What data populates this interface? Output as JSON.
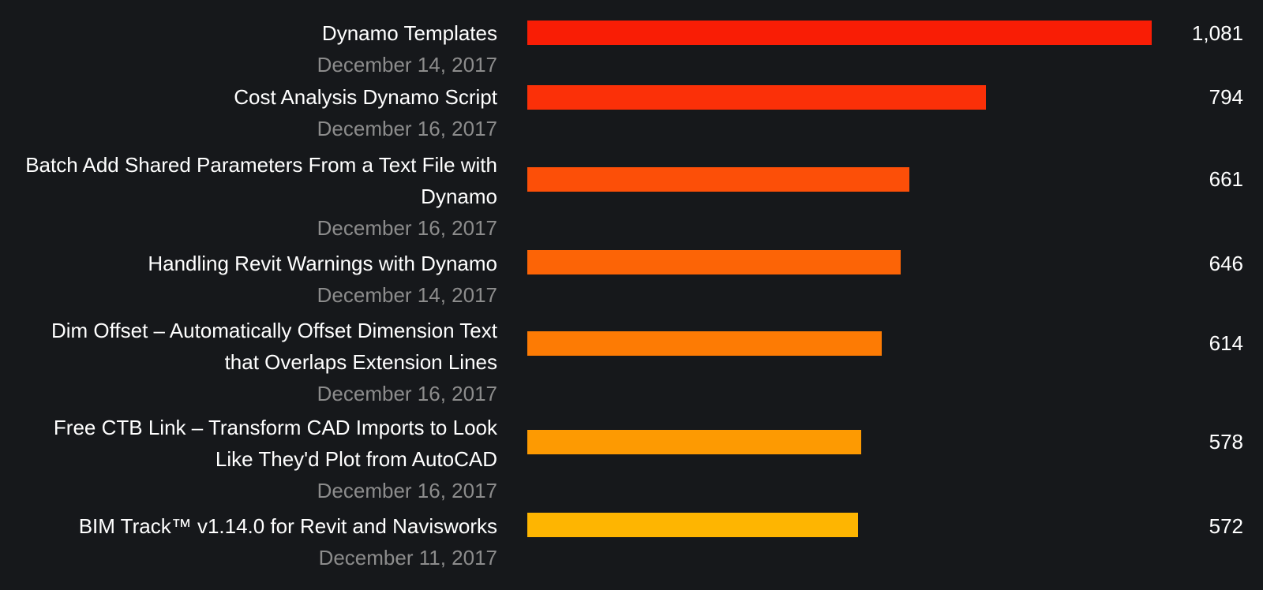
{
  "chart_data": {
    "type": "bar",
    "orientation": "horizontal",
    "xlim": [
      0,
      1081
    ],
    "rows": [
      {
        "title": "Dynamo Templates",
        "date": "December 14, 2017",
        "value": 1081,
        "value_label": "1,081",
        "color": "#f91d05"
      },
      {
        "title": "Cost Analysis Dynamo Script",
        "date": "December 16, 2017",
        "value": 794,
        "value_label": "794",
        "color": "#fb3008"
      },
      {
        "title": "Batch Add Shared Parameters From a Text File with Dynamo",
        "date": "December 16, 2017",
        "value": 661,
        "value_label": "661",
        "color": "#fc4f08"
      },
      {
        "title": "Handling Revit Warnings with Dynamo",
        "date": "December 14, 2017",
        "value": 646,
        "value_label": "646",
        "color": "#fc6406"
      },
      {
        "title": "Dim Offset – Automatically Offset Dimension Text that Overlaps Extension Lines",
        "date": "December 16, 2017",
        "value": 614,
        "value_label": "614",
        "color": "#fd7b04"
      },
      {
        "title": "Free CTB Link – Transform CAD Imports to Look Like They'd Plot from AutoCAD",
        "date": "December 16, 2017",
        "value": 578,
        "value_label": "578",
        "color": "#fd9a02"
      },
      {
        "title": "BIM Track™ v1.14.0 for Revit and Navisworks",
        "date": "December 11, 2017",
        "value": 572,
        "value_label": "572",
        "color": "#feb501"
      }
    ]
  }
}
